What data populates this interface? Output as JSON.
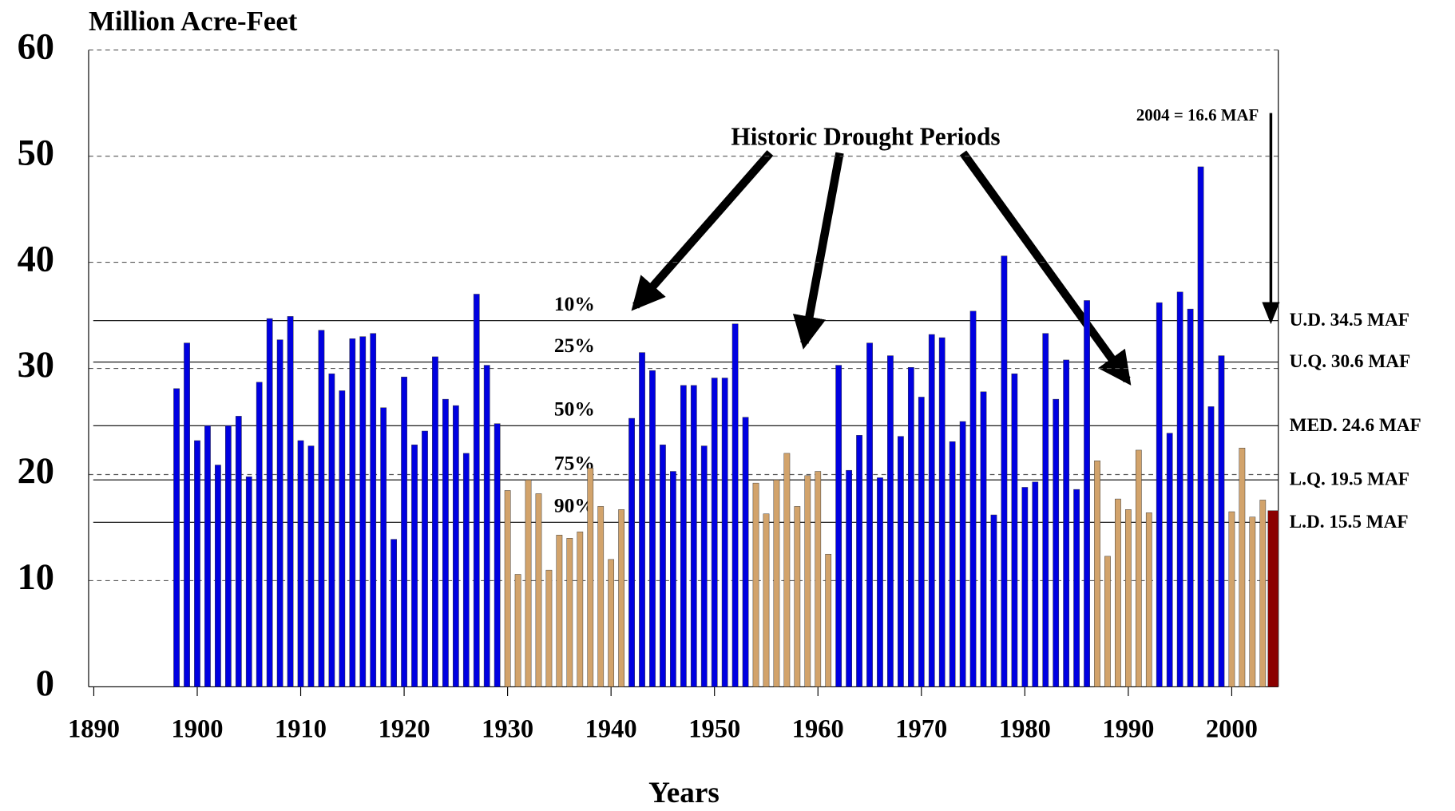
{
  "chart_data": {
    "type": "bar",
    "title": "Million Acre-Feet",
    "xlabel": "Years",
    "annotations": [
      "Historic Drought Periods",
      "2004 = 16.6 MAF"
    ],
    "x": [
      1898,
      1899,
      1900,
      1901,
      1902,
      1903,
      1904,
      1905,
      1906,
      1907,
      1908,
      1909,
      1910,
      1911,
      1912,
      1913,
      1914,
      1915,
      1916,
      1917,
      1918,
      1919,
      1920,
      1921,
      1922,
      1923,
      1924,
      1925,
      1926,
      1927,
      1928,
      1929,
      1930,
      1931,
      1932,
      1933,
      1934,
      1935,
      1936,
      1937,
      1938,
      1939,
      1940,
      1941,
      1942,
      1943,
      1944,
      1945,
      1946,
      1947,
      1948,
      1949,
      1950,
      1951,
      1952,
      1953,
      1954,
      1955,
      1956,
      1957,
      1958,
      1959,
      1960,
      1961,
      1962,
      1963,
      1964,
      1965,
      1966,
      1967,
      1968,
      1969,
      1970,
      1971,
      1972,
      1973,
      1974,
      1975,
      1976,
      1977,
      1978,
      1979,
      1980,
      1981,
      1982,
      1983,
      1984,
      1985,
      1986,
      1987,
      1988,
      1989,
      1990,
      1991,
      1992,
      1993,
      1994,
      1995,
      1996,
      1997,
      1998,
      1999,
      2000,
      2001,
      2002,
      2003,
      2004
    ],
    "values": [
      28.1,
      32.4,
      23.2,
      24.6,
      20.9,
      24.6,
      25.5,
      19.8,
      28.7,
      34.7,
      32.7,
      34.9,
      23.2,
      22.7,
      33.6,
      29.5,
      27.9,
      32.8,
      33.0,
      33.3,
      26.3,
      13.9,
      29.2,
      22.8,
      24.1,
      31.1,
      27.1,
      26.5,
      22.0,
      37.0,
      30.3,
      24.8,
      18.5,
      10.6,
      19.5,
      18.2,
      11.0,
      14.3,
      14.0,
      14.6,
      20.6,
      17.0,
      12.0,
      16.7,
      25.3,
      31.5,
      29.8,
      22.8,
      20.3,
      28.4,
      28.4,
      22.7,
      29.1,
      29.1,
      34.2,
      25.4,
      19.2,
      16.3,
      19.5,
      22.0,
      17.0,
      19.9,
      20.3,
      12.5,
      30.3,
      20.4,
      23.7,
      32.4,
      19.7,
      31.2,
      23.6,
      30.1,
      27.3,
      33.2,
      32.9,
      23.1,
      25.0,
      35.4,
      27.8,
      16.2,
      40.6,
      29.5,
      18.8,
      19.3,
      33.3,
      27.1,
      30.8,
      18.6,
      36.4,
      21.3,
      12.3,
      17.7,
      16.7,
      22.3,
      16.4,
      36.2,
      23.9,
      37.2,
      35.6,
      49.0,
      26.4,
      31.2,
      16.5,
      22.5,
      16.0,
      17.6,
      16.6
    ],
    "colors": [
      "#0000e0",
      "#0000e0",
      "#0000e0",
      "#0000e0",
      "#0000e0",
      "#0000e0",
      "#0000e0",
      "#0000e0",
      "#0000e0",
      "#0000e0",
      "#0000e0",
      "#0000e0",
      "#0000e0",
      "#0000e0",
      "#0000e0",
      "#0000e0",
      "#0000e0",
      "#0000e0",
      "#0000e0",
      "#0000e0",
      "#0000e0",
      "#0000e0",
      "#0000e0",
      "#0000e0",
      "#0000e0",
      "#0000e0",
      "#0000e0",
      "#0000e0",
      "#0000e0",
      "#0000e0",
      "#0000e0",
      "#0000e0",
      "#d2a36b",
      "#d2a36b",
      "#d2a36b",
      "#d2a36b",
      "#d2a36b",
      "#d2a36b",
      "#d2a36b",
      "#d2a36b",
      "#d2a36b",
      "#d2a36b",
      "#d2a36b",
      "#d2a36b",
      "#0000e0",
      "#0000e0",
      "#0000e0",
      "#0000e0",
      "#0000e0",
      "#0000e0",
      "#0000e0",
      "#0000e0",
      "#0000e0",
      "#0000e0",
      "#0000e0",
      "#0000e0",
      "#d2a36b",
      "#d2a36b",
      "#d2a36b",
      "#d2a36b",
      "#d2a36b",
      "#d2a36b",
      "#d2a36b",
      "#d2a36b",
      "#0000e0",
      "#0000e0",
      "#0000e0",
      "#0000e0",
      "#0000e0",
      "#0000e0",
      "#0000e0",
      "#0000e0",
      "#0000e0",
      "#0000e0",
      "#0000e0",
      "#0000e0",
      "#0000e0",
      "#0000e0",
      "#0000e0",
      "#0000e0",
      "#0000e0",
      "#0000e0",
      "#0000e0",
      "#0000e0",
      "#0000e0",
      "#0000e0",
      "#0000e0",
      "#0000e0",
      "#0000e0",
      "#d2a36b",
      "#d2a36b",
      "#d2a36b",
      "#d2a36b",
      "#d2a36b",
      "#d2a36b",
      "#0000e0",
      "#0000e0",
      "#0000e0",
      "#0000e0",
      "#0000e0",
      "#0000e0",
      "#0000e0",
      "#d2a36b",
      "#d2a36b",
      "#d2a36b",
      "#d2a36b",
      "#8b0000"
    ],
    "xlim": [
      1889.5,
      2004.5
    ],
    "xticks": [
      1890,
      1900,
      1910,
      1920,
      1930,
      1940,
      1950,
      1960,
      1970,
      1980,
      1990,
      2000
    ],
    "ylim": [
      0,
      60
    ],
    "yticks": [
      0,
      10,
      20,
      30,
      40,
      50,
      60
    ],
    "grid": true,
    "reference_lines": [
      {
        "value": 34.5,
        "label": "U.D. 34.5 MAF",
        "percentile": "10%"
      },
      {
        "value": 30.6,
        "label": "U.Q. 30.6 MAF",
        "percentile": "25%"
      },
      {
        "value": 24.6,
        "label": "MED. 24.6 MAF",
        "percentile": "50%"
      },
      {
        "value": 19.5,
        "label": "L.Q. 19.5 MAF",
        "percentile": "75%"
      },
      {
        "value": 15.5,
        "label": "L.D. 15.5 MAF",
        "percentile": "90%"
      }
    ]
  }
}
